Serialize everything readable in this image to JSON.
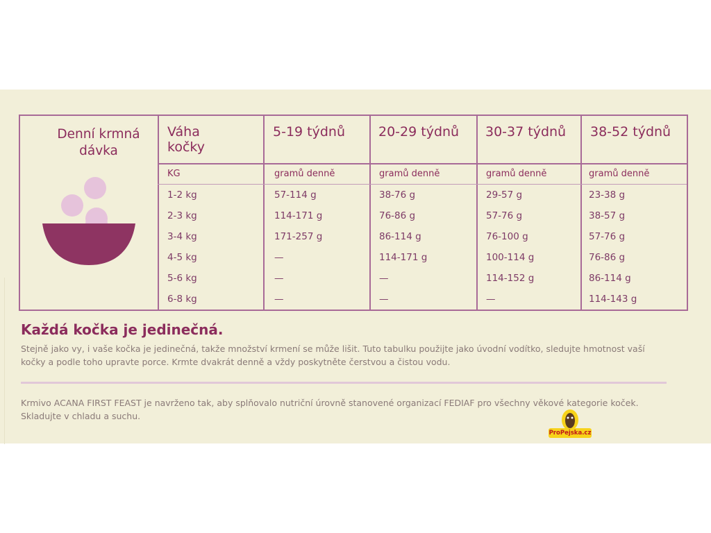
{
  "table": {
    "title_line1": "Denní krmná",
    "title_line2": "dávka",
    "weight_header_line1": "Váha",
    "weight_header_line2": "kočky",
    "weight_unit": "KG",
    "age_columns": [
      {
        "label": "5-19 týdnů",
        "unit": "gramů denně"
      },
      {
        "label": "20-29 týdnů",
        "unit": "gramů denně"
      },
      {
        "label": "30-37 týdnů",
        "unit": "gramů denně"
      },
      {
        "label": "38-52 týdnů",
        "unit": "gramů denně"
      }
    ],
    "rows": [
      {
        "weight": "1-2 kg",
        "values": [
          "57-114 g",
          "38-76 g",
          "29-57 g",
          "23-38 g"
        ]
      },
      {
        "weight": "2-3 kg",
        "values": [
          "114-171 g",
          "76-86 g",
          "57-76 g",
          "38-57 g"
        ]
      },
      {
        "weight": "3-4 kg",
        "values": [
          "171-257 g",
          "86-114 g",
          "76-100 g",
          "57-76 g"
        ]
      },
      {
        "weight": "4-5 kg",
        "values": [
          "—",
          "114-171 g",
          "100-114 g",
          "76-86 g"
        ]
      },
      {
        "weight": "5-6 kg",
        "values": [
          "—",
          "—",
          "114-152 g",
          "86-114 g"
        ]
      },
      {
        "weight": "6-8 kg",
        "values": [
          "—",
          "—",
          "—",
          "114-143 g"
        ]
      }
    ]
  },
  "unique": {
    "heading": "Každá kočka je jedinečná.",
    "line1": "Stejně jako vy, i vaše kočka je jedinečná, takže množství krmení se může lišit. Tuto tabulku použijte jako úvodní vodítko, sledujte hmotnost vaší",
    "line2": "kočky a podle toho upravte porce. Krmte dvakrát denně a vždy poskytněte čerstvou a čistou vodu."
  },
  "note": {
    "line1": "Krmivo ACANA FIRST FEAST je navrženo tak, aby splňovalo nutriční úrovně stanovené organizací FEDIAF pro všechny věkové kategorie koček.",
    "line2": "Skladujte v chladu a suchu."
  },
  "logo": {
    "text": "ProPejska.cz"
  },
  "colors": {
    "panel_bg": "#f2efd9",
    "accent": "#8b2c5c",
    "border": "#a86a97",
    "bowl": "#8e3462",
    "bubble": "#e6c3db"
  },
  "icons": [
    "bowl-icon",
    "dog-logo-icon"
  ]
}
